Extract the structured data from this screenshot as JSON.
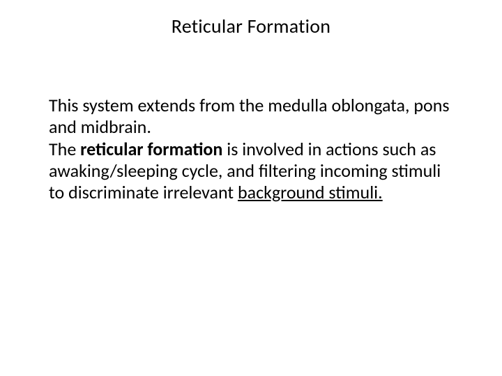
{
  "slide": {
    "title": "Reticular Formation",
    "para1": "This system extends from the medulla oblongata, pons and midbrain.",
    "para2_pre": "The ",
    "para2_bold": "reticular formation",
    "para2_mid": " is involved in actions such as awaking/sleeping cycle, and filtering incoming stimuli to discriminate irrelevant ",
    "para2_underline": "background stimuli."
  },
  "style": {
    "background_color": "#ffffff",
    "text_color": "#000000",
    "title_fontsize": 28,
    "body_fontsize": 26,
    "font_family": "Calibri"
  }
}
